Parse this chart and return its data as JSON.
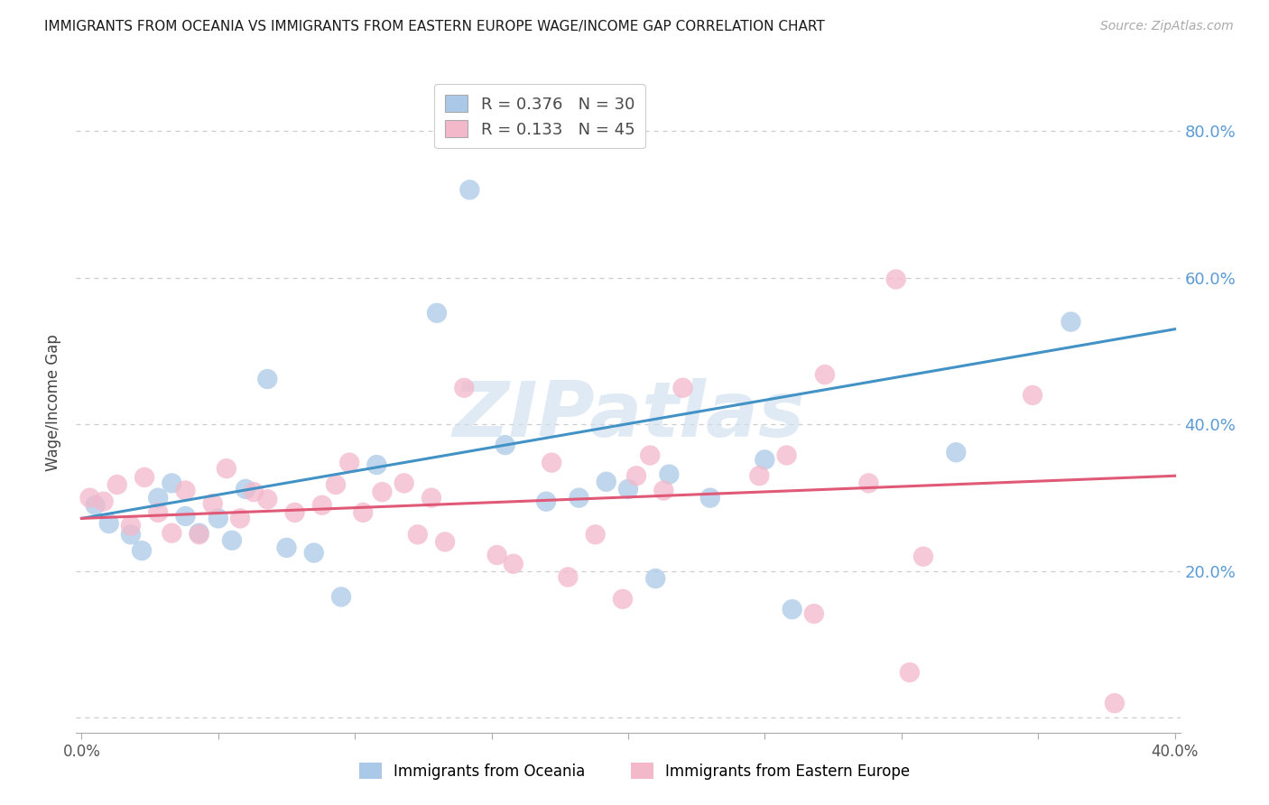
{
  "title": "IMMIGRANTS FROM OCEANIA VS IMMIGRANTS FROM EASTERN EUROPE WAGE/INCOME GAP CORRELATION CHART",
  "source": "Source: ZipAtlas.com",
  "ylabel": "Wage/Income Gap",
  "legend1_label": "Immigrants from Oceania",
  "legend2_label": "Immigrants from Eastern Europe",
  "R1": 0.376,
  "N1": 30,
  "R2": 0.133,
  "N2": 45,
  "xlim": [
    -0.002,
    0.402
  ],
  "ylim": [
    -0.02,
    0.88
  ],
  "yticks": [
    0.0,
    0.2,
    0.4,
    0.6,
    0.8
  ],
  "ytick_labels": [
    "",
    "20.0%",
    "40.0%",
    "60.0%",
    "80.0%"
  ],
  "xticks": [
    0.0,
    0.05,
    0.1,
    0.15,
    0.2,
    0.25,
    0.3,
    0.35,
    0.4
  ],
  "xtick_labels": [
    "0.0%",
    "",
    "",
    "",
    "",
    "",
    "",
    "",
    "40.0%"
  ],
  "color_blue": "#aac9e8",
  "color_blue_line": "#4292c6",
  "color_pink": "#f4b8cb",
  "color_pink_line": "#e05a78",
  "color_right_axis": "#5b9bd5",
  "watermark": "ZIPatlas",
  "oceania_x": [
    0.005,
    0.01,
    0.018,
    0.022,
    0.028,
    0.033,
    0.038,
    0.043,
    0.05,
    0.055,
    0.06,
    0.068,
    0.075,
    0.085,
    0.095,
    0.108,
    0.13,
    0.142,
    0.155,
    0.17,
    0.182,
    0.192,
    0.2,
    0.21,
    0.215,
    0.23,
    0.25,
    0.26,
    0.32,
    0.362
  ],
  "oceania_y": [
    0.29,
    0.265,
    0.25,
    0.228,
    0.3,
    0.32,
    0.275,
    0.252,
    0.272,
    0.242,
    0.312,
    0.462,
    0.232,
    0.225,
    0.165,
    0.345,
    0.552,
    0.72,
    0.372,
    0.295,
    0.3,
    0.322,
    0.312,
    0.19,
    0.332,
    0.3,
    0.352,
    0.148,
    0.362,
    0.54
  ],
  "eastern_x": [
    0.003,
    0.008,
    0.013,
    0.018,
    0.023,
    0.028,
    0.033,
    0.038,
    0.043,
    0.048,
    0.053,
    0.058,
    0.063,
    0.068,
    0.078,
    0.088,
    0.093,
    0.098,
    0.103,
    0.11,
    0.118,
    0.123,
    0.128,
    0.133,
    0.14,
    0.152,
    0.158,
    0.172,
    0.178,
    0.188,
    0.198,
    0.203,
    0.208,
    0.213,
    0.22,
    0.248,
    0.258,
    0.268,
    0.272,
    0.288,
    0.298,
    0.303,
    0.308,
    0.348,
    0.378
  ],
  "eastern_y": [
    0.3,
    0.295,
    0.318,
    0.262,
    0.328,
    0.28,
    0.252,
    0.31,
    0.25,
    0.292,
    0.34,
    0.272,
    0.308,
    0.298,
    0.28,
    0.29,
    0.318,
    0.348,
    0.28,
    0.308,
    0.32,
    0.25,
    0.3,
    0.24,
    0.45,
    0.222,
    0.21,
    0.348,
    0.192,
    0.25,
    0.162,
    0.33,
    0.358,
    0.31,
    0.45,
    0.33,
    0.358,
    0.142,
    0.468,
    0.32,
    0.598,
    0.062,
    0.22,
    0.44,
    0.02
  ]
}
